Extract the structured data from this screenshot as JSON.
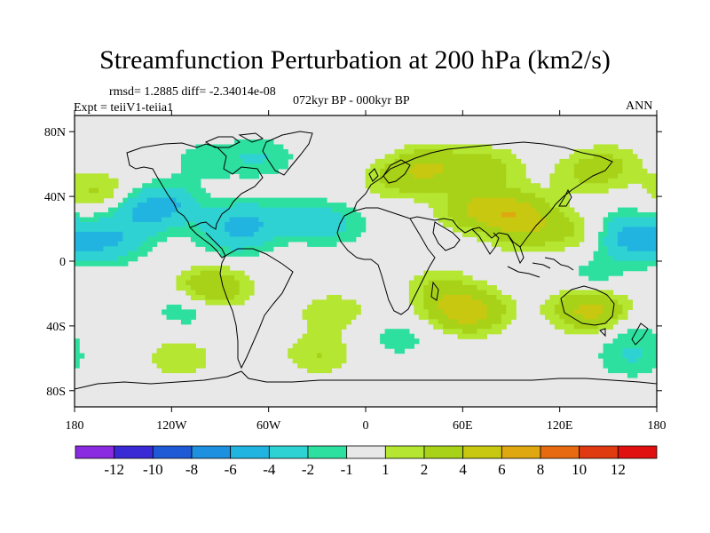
{
  "title": "Streamfunction Perturbation at 200 hPa (km2/s)",
  "stats": "rmsd= 1.2885 diff= -2.34014e-08",
  "experiment": "Expt = teiiV1-teiia1",
  "period": "072kyr BP - 000kyr BP",
  "season": "ANN",
  "lat_ticks": [
    {
      "label": "80N",
      "lat": 80
    },
    {
      "label": "40N",
      "lat": 40
    },
    {
      "label": "0",
      "lat": 0
    },
    {
      "label": "40S",
      "lat": -40
    },
    {
      "label": "80S",
      "lat": -80
    }
  ],
  "lon_ticks": [
    {
      "label": "180",
      "lon": -180
    },
    {
      "label": "120W",
      "lon": -120
    },
    {
      "label": "60W",
      "lon": -60
    },
    {
      "label": "0",
      "lon": 0
    },
    {
      "label": "60E",
      "lon": 60
    },
    {
      "label": "120E",
      "lon": 120
    },
    {
      "label": "180",
      "lon": 180
    }
  ],
  "colorbar": {
    "colors": [
      "#8a2be2",
      "#3a2ad6",
      "#1e5ad6",
      "#1e90e0",
      "#22b4e0",
      "#2fd2d2",
      "#2ee0a0",
      "#e8e8e8",
      "#b4e632",
      "#a8d218",
      "#c8c810",
      "#e0a810",
      "#e86a10",
      "#e03a10",
      "#e01010"
    ],
    "labels": [
      "-12",
      "-10",
      "-8",
      "-6",
      "-4",
      "-2",
      "-1",
      "1",
      "2",
      "4",
      "6",
      "8",
      "10",
      "12"
    ]
  },
  "chart_data": {
    "type": "heatmap",
    "field": "200 hPa streamfunction perturbation",
    "units": "km2/s",
    "lon_range": [
      -180,
      180
    ],
    "lat_range": [
      -90,
      90
    ],
    "levels": [
      -12,
      -10,
      -8,
      -6,
      -4,
      -2,
      -1,
      1,
      2,
      4,
      6,
      8,
      10,
      12
    ],
    "anomaly_centers": [
      {
        "lon": -165,
        "lat": 42,
        "value": 2.3
      },
      {
        "lon": -160,
        "lat": 12,
        "value": -4
      },
      {
        "lon": -140,
        "lat": 28,
        "value": -2.5
      },
      {
        "lon": -125,
        "lat": 35,
        "value": -4
      },
      {
        "lon": -75,
        "lat": 24,
        "value": -3.5
      },
      {
        "lon": -82,
        "lat": 14,
        "value": -2
      },
      {
        "lon": -40,
        "lat": 27,
        "value": -2
      },
      {
        "lon": -20,
        "lat": 22,
        "value": -2
      },
      {
        "lon": -100,
        "lat": 62,
        "value": -1.5
      },
      {
        "lon": -65,
        "lat": 64,
        "value": -2
      },
      {
        "lon": -95,
        "lat": -17,
        "value": 4
      },
      {
        "lon": -110,
        "lat": -29,
        "value": -2
      },
      {
        "lon": -115,
        "lat": -60,
        "value": 1.8
      },
      {
        "lon": -20,
        "lat": -32,
        "value": 1.8
      },
      {
        "lon": -28,
        "lat": -58,
        "value": 2
      },
      {
        "lon": 20,
        "lat": -48,
        "value": -1.5
      },
      {
        "lon": 55,
        "lat": -27,
        "value": 2
      },
      {
        "lon": 65,
        "lat": -32,
        "value": 4
      },
      {
        "lon": 45,
        "lat": -15,
        "value": 1.5
      },
      {
        "lon": 40,
        "lat": 58,
        "value": 3.5
      },
      {
        "lon": 75,
        "lat": 58,
        "value": 2.5
      },
      {
        "lon": 20,
        "lat": 50,
        "value": 2
      },
      {
        "lon": 70,
        "lat": 32,
        "value": 4
      },
      {
        "lon": 95,
        "lat": 30,
        "value": 3.5
      },
      {
        "lon": 100,
        "lat": 18,
        "value": 2.5
      },
      {
        "lon": 135,
        "lat": 18,
        "value": 2
      },
      {
        "lon": 150,
        "lat": 60,
        "value": 2
      },
      {
        "lon": 135,
        "lat": 52,
        "value": 1.5
      },
      {
        "lon": 160,
        "lat": 22,
        "value": -2
      },
      {
        "lon": 165,
        "lat": 12,
        "value": -4
      },
      {
        "lon": 140,
        "lat": -10,
        "value": -1.5
      },
      {
        "lon": 132,
        "lat": -27,
        "value": 2
      },
      {
        "lon": 145,
        "lat": -33,
        "value": 4
      },
      {
        "lon": 160,
        "lat": -40,
        "value": -2
      },
      {
        "lon": 165,
        "lat": -60,
        "value": -2
      }
    ]
  }
}
